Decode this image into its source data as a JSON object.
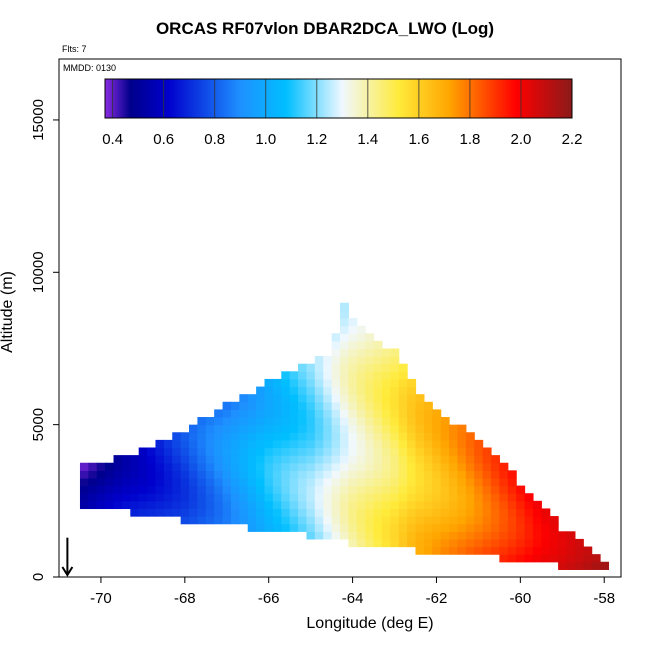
{
  "chart_data": {
    "type": "heatmap",
    "title": "ORCAS RF07vlon DBAR2DCA_LWO (Log)",
    "flights_note": "Flts: 7",
    "date_note": "MMDD: 0130",
    "xlabel": "Longitude (deg E)",
    "ylabel": "Altitude (m)",
    "xlim": [
      -71.0,
      -57.6
    ],
    "ylim": [
      0,
      17000
    ],
    "x_ticks": [
      "-70",
      "-68",
      "-66",
      "-64",
      "-62",
      "-60",
      "-58"
    ],
    "x_tick_values": [
      -70,
      -68,
      -66,
      -64,
      -62,
      -60,
      -58
    ],
    "y_ticks": [
      "0",
      "5000",
      "10000",
      "15000"
    ],
    "y_tick_values": [
      0,
      5000,
      10000,
      15000
    ],
    "colorbar": {
      "range": [
        0.37,
        2.2
      ],
      "tick_labels": [
        "0.4",
        "0.6",
        "0.8",
        "1.0",
        "1.2",
        "1.4",
        "1.6",
        "1.8",
        "2.0",
        "2.2"
      ],
      "tick_values": [
        0.4,
        0.6,
        0.8,
        1.0,
        1.2,
        1.4,
        1.6,
        1.8,
        2.0,
        2.2
      ],
      "colors": [
        "#8a2be2",
        "#00008b",
        "#0000cd",
        "#1e90ff",
        "#00bfff",
        "#f0f8ff",
        "#ffeb3b",
        "#ffa500",
        "#ff0000",
        "#8b1a1a"
      ],
      "color_stops": [
        0.37,
        0.47,
        0.62,
        0.9,
        1.08,
        1.3,
        1.52,
        1.72,
        1.98,
        2.2
      ]
    },
    "grid": {
      "cell_width": 0.2,
      "cell_height": 250,
      "x_start": -70.5,
      "x_end": -58.1,
      "profile_x": [
        -70.5,
        -69.0,
        -68.0,
        -67.0,
        -66.0,
        -64.5,
        -64.2,
        -64.0,
        -63.0,
        -62.5,
        -61.0,
        -60.0,
        -59.0,
        -58.1
      ],
      "profile_top": [
        3500,
        4000,
        4700,
        5500,
        6300,
        7300,
        8800,
        8300,
        7300,
        6000,
        4300,
        3000,
        1500,
        500
      ],
      "profile_bottom": [
        2500,
        2200,
        2000,
        1800,
        1700,
        1400,
        1300,
        1200,
        1000,
        1000,
        800,
        700,
        500,
        300
      ],
      "value_x": [
        -70.5,
        -69.5,
        -68.0,
        -67.0,
        -66.5,
        -66.0,
        -65.0,
        -64.0,
        -63.0,
        -62.5,
        -61.5,
        -60.5,
        -59.5,
        -58.1
      ],
      "value": [
        0.45,
        0.62,
        0.78,
        0.92,
        1.0,
        1.08,
        1.2,
        1.38,
        1.52,
        1.62,
        1.75,
        1.9,
        2.05,
        2.2
      ]
    },
    "marker": {
      "type": "arrow-down",
      "x": -70.8,
      "y_top": 700,
      "y_bottom": 0
    }
  }
}
